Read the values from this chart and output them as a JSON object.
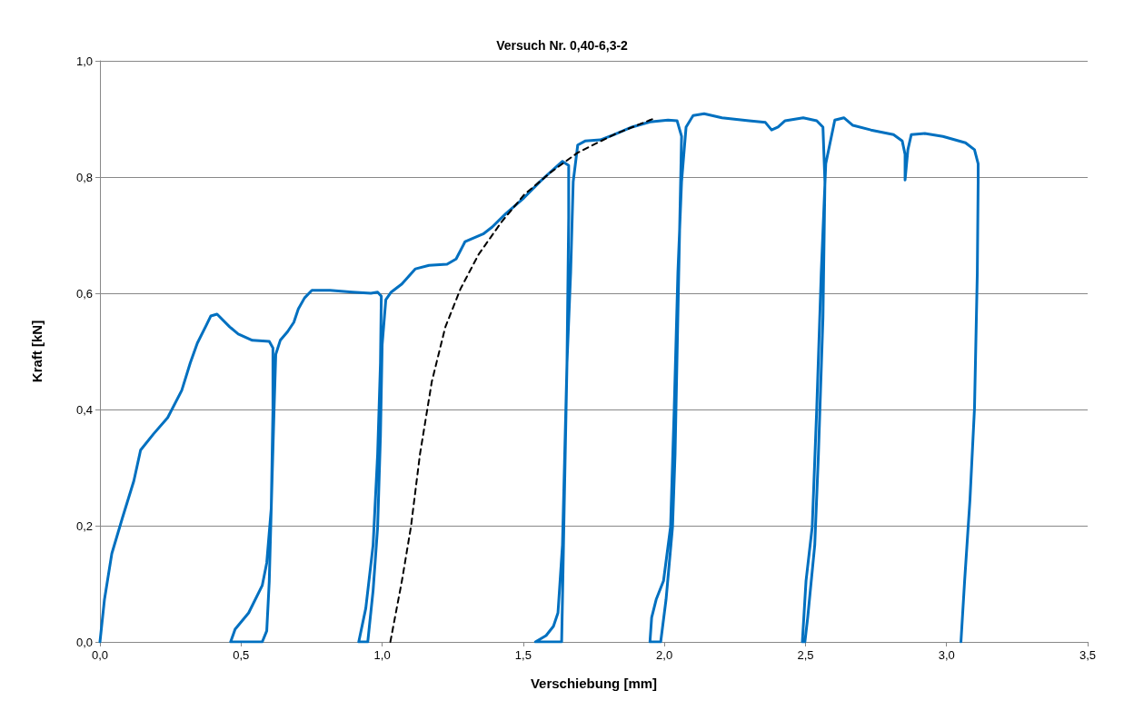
{
  "chart_data": {
    "type": "line",
    "title": "Versuch Nr. 0,40-6,3-2",
    "xlabel": "Verschiebung [mm]",
    "ylabel": "Kraft [kN]",
    "xlim": [
      0,
      3.5
    ],
    "xticks": [
      {
        "value": 0,
        "label": "0,0"
      },
      {
        "value": 0.5,
        "label": "0,5"
      },
      {
        "value": 1,
        "label": "1,0"
      },
      {
        "value": 1.5,
        "label": "1,5"
      },
      {
        "value": 2,
        "label": "2,0"
      },
      {
        "value": 2.5,
        "label": "2,5"
      },
      {
        "value": 3,
        "label": "3,0"
      },
      {
        "value": 3.5,
        "label": "3,5"
      }
    ],
    "ylim": [
      0,
      1
    ],
    "yticks": [
      {
        "value": 0,
        "label": "0,0"
      },
      {
        "value": 0.2,
        "label": "0,2"
      },
      {
        "value": 0.4,
        "label": "0,4"
      },
      {
        "value": 0.6,
        "label": "0,6"
      },
      {
        "value": 0.8,
        "label": "0,8"
      },
      {
        "value": 1,
        "label": "1,0"
      }
    ],
    "grid": "y",
    "marker": "none",
    "series": [
      {
        "color": "#0070c0",
        "line_style": "solid",
        "x": [
          0,
          0.016,
          0.042,
          0.08,
          0.12,
          0.144,
          0.19,
          0.24,
          0.29,
          0.32,
          0.345,
          0.377,
          0.393,
          0.415,
          0.46,
          0.49,
          0.54,
          0.6,
          0.613,
          0.613,
          0.607,
          0.6,
          0.591,
          0.575,
          0.463,
          0.479,
          0.527,
          0.575,
          0.591,
          0.607,
          0.617,
          0.623,
          0.639,
          0.665,
          0.687,
          0.703,
          0.725,
          0.751,
          0.815,
          0.895,
          0.96,
          0.984,
          0.997,
          0.994,
          0.984,
          0.968,
          0.942,
          0.917,
          0.949,
          0.968,
          0.984,
          0.994,
          1.0,
          1.013,
          1.032,
          1.07,
          1.118,
          1.166,
          1.23,
          1.262,
          1.294,
          1.358,
          1.39,
          1.438,
          1.502,
          1.559,
          1.613,
          1.639,
          1.661,
          1.661,
          1.655,
          1.645,
          1.639,
          1.636,
          1.543,
          1.581,
          1.607,
          1.623,
          1.639,
          1.655,
          1.668,
          1.677,
          1.693,
          1.719,
          1.773,
          1.821,
          1.885,
          1.949,
          2.013,
          2.045,
          2.061,
          2.051,
          2.038,
          2.029,
          2.006,
          1.987,
          1.949,
          1.955,
          1.971,
          1.997,
          2.022,
          2.035,
          2.048,
          2.061,
          2.077,
          2.102,
          2.141,
          2.204,
          2.3,
          2.358,
          2.38,
          2.403,
          2.428,
          2.492,
          2.54,
          2.562,
          2.569,
          2.562,
          2.546,
          2.533,
          2.508,
          2.498,
          2.489,
          2.502,
          2.524,
          2.54,
          2.556,
          2.572,
          2.604,
          2.636,
          2.668,
          2.732,
          2.812,
          2.843,
          2.853,
          2.853,
          2.863,
          2.875,
          2.923,
          2.987,
          3.067,
          3.099,
          3.112,
          3.112,
          3.109,
          3.099,
          3.083,
          3.064,
          3.051
        ],
        "values": [
          0,
          0.073,
          0.152,
          0.214,
          0.277,
          0.33,
          0.358,
          0.386,
          0.433,
          0.48,
          0.514,
          0.545,
          0.561,
          0.564,
          0.542,
          0.53,
          0.519,
          0.517,
          0.506,
          0.4,
          0.23,
          0.105,
          0.019,
          0,
          0,
          0.022,
          0.05,
          0.097,
          0.136,
          0.23,
          0.4,
          0.495,
          0.519,
          0.534,
          0.55,
          0.573,
          0.592,
          0.605,
          0.605,
          0.602,
          0.6,
          0.602,
          0.595,
          0.48,
          0.323,
          0.167,
          0.058,
          0,
          0,
          0.089,
          0.198,
          0.355,
          0.511,
          0.589,
          0.602,
          0.616,
          0.642,
          0.648,
          0.65,
          0.659,
          0.689,
          0.702,
          0.714,
          0.737,
          0.764,
          0.792,
          0.816,
          0.827,
          0.82,
          0.73,
          0.48,
          0.23,
          0.073,
          0,
          0,
          0.011,
          0.027,
          0.05,
          0.167,
          0.48,
          0.636,
          0.792,
          0.855,
          0.862,
          0.864,
          0.873,
          0.886,
          0.895,
          0.898,
          0.897,
          0.87,
          0.636,
          0.323,
          0.198,
          0.073,
          0,
          0,
          0.042,
          0.073,
          0.105,
          0.198,
          0.402,
          0.636,
          0.792,
          0.886,
          0.906,
          0.909,
          0.902,
          0.897,
          0.894,
          0.881,
          0.886,
          0.897,
          0.902,
          0.897,
          0.886,
          0.792,
          0.558,
          0.323,
          0.167,
          0.042,
          0,
          0,
          0.105,
          0.198,
          0.402,
          0.636,
          0.823,
          0.898,
          0.902,
          0.889,
          0.881,
          0.873,
          0.862,
          0.839,
          0.795,
          0.847,
          0.873,
          0.875,
          0.87,
          0.859,
          0.847,
          0.823,
          0.792,
          0.636,
          0.402,
          0.245,
          0.105,
          0
        ]
      },
      {
        "color": "#000000",
        "line_style": "dashed",
        "x": [
          1.029,
          1.07,
          1.102,
          1.134,
          1.176,
          1.224,
          1.278,
          1.342,
          1.422,
          1.502,
          1.597,
          1.693,
          1.821,
          1.949,
          1.971
        ],
        "values": [
          0,
          0.105,
          0.198,
          0.323,
          0.448,
          0.542,
          0.608,
          0.667,
          0.722,
          0.769,
          0.808,
          0.842,
          0.873,
          0.898,
          0.902
        ]
      }
    ]
  }
}
